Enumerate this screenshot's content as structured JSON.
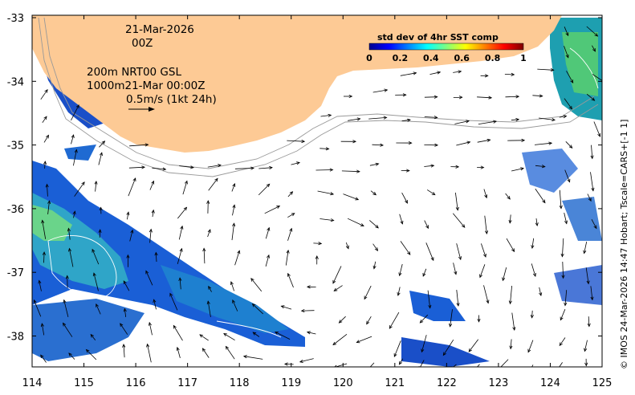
{
  "x_axis": {
    "ticks": [
      "114",
      "115",
      "116",
      "117",
      "118",
      "119",
      "120",
      "121",
      "122",
      "123",
      "124",
      "125"
    ]
  },
  "y_axis": {
    "ticks": [
      "-33",
      "-34",
      "-35",
      "-36",
      "-37",
      "-38"
    ]
  },
  "annotation": {
    "date": "21-Mar-2026",
    "hour": "00Z",
    "line1": "200m  NRT00 GSL",
    "line2": "1000m21-Mar 00:00Z",
    "scale": "0.5m/s (1kt 24h)"
  },
  "colorbar": {
    "title": "std dev of 4hr SST comp",
    "ticks": [
      "0",
      "0.2",
      "0.4",
      "0.6",
      "0.8",
      "1"
    ]
  },
  "credit": "© IMOS 24-Mar-2026 14:47 Hobart; Tscale=CARS+[-1 1]",
  "colors": {
    "land": "#fdca95",
    "ocean": "#ffffff"
  }
}
